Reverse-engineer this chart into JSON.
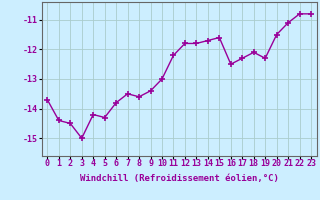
{
  "x": [
    0,
    1,
    2,
    3,
    4,
    5,
    6,
    7,
    8,
    9,
    10,
    11,
    12,
    13,
    14,
    15,
    16,
    17,
    18,
    19,
    20,
    21,
    22,
    23
  ],
  "y": [
    -13.7,
    -14.4,
    -14.5,
    -15.0,
    -14.2,
    -14.3,
    -13.8,
    -13.5,
    -13.6,
    -13.4,
    -13.0,
    -12.2,
    -11.8,
    -11.8,
    -11.7,
    -11.6,
    -12.5,
    -12.3,
    -12.1,
    -12.3,
    -11.5,
    -11.1,
    -10.8,
    -10.8
  ],
  "line_color": "#990099",
  "marker": "+",
  "markersize": 4,
  "markeredgewidth": 1.2,
  "linewidth": 1.0,
  "background_color": "#cceeff",
  "grid_color": "#aacccc",
  "xlabel": "Windchill (Refroidissement éolien,°C)",
  "xlabel_fontsize": 6.5,
  "tick_fontsize": 6,
  "xlim": [
    -0.5,
    23.5
  ],
  "ylim": [
    -15.6,
    -10.4
  ],
  "yticks": [
    -15,
    -14,
    -13,
    -12,
    -11
  ],
  "xticks": [
    0,
    1,
    2,
    3,
    4,
    5,
    6,
    7,
    8,
    9,
    10,
    11,
    12,
    13,
    14,
    15,
    16,
    17,
    18,
    19,
    20,
    21,
    22,
    23
  ],
  "xtick_labels": [
    "0",
    "1",
    "2",
    "3",
    "4",
    "5",
    "6",
    "7",
    "8",
    "9",
    "10",
    "11",
    "12",
    "13",
    "14",
    "15",
    "16",
    "17",
    "18",
    "19",
    "20",
    "21",
    "22",
    "23"
  ]
}
